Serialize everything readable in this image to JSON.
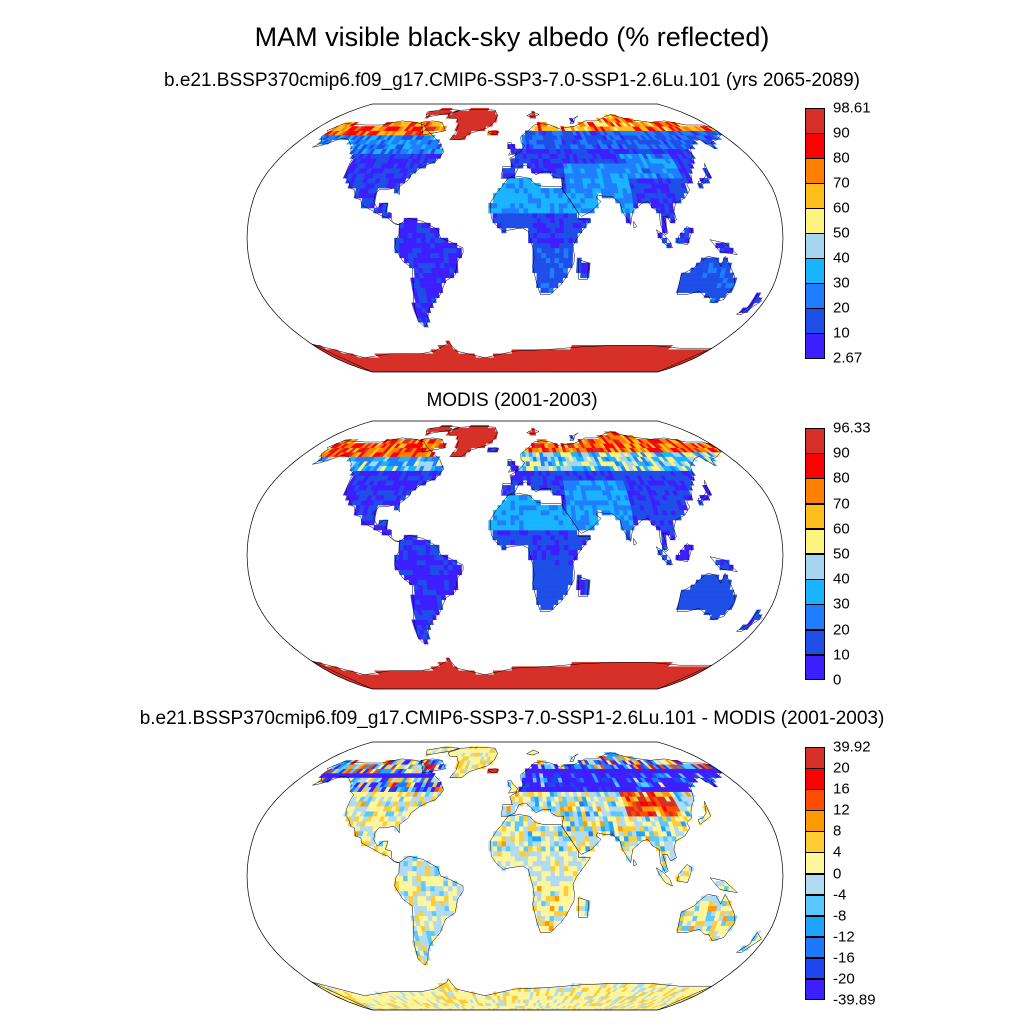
{
  "title": "MAM visible black-sky albedo (% reflected)",
  "panels": [
    {
      "subtitle": "b.e21.BSSP370cmip6.f09_g17.CMIP6-SSP3-7.0-SSP1-2.6Lu.101 (yrs 2065-2089)",
      "colorbar": {
        "labels": [
          "98.61",
          "90",
          "80",
          "70",
          "60",
          "50",
          "40",
          "30",
          "20",
          "10",
          "2.67"
        ],
        "colors": [
          "#d62f27",
          "#ff0000",
          "#ff7f00",
          "#ffbf1a",
          "#fff37f",
          "#a6d6ef",
          "#19b4ff",
          "#1e7eff",
          "#1e4ee8",
          "#3c1eff"
        ]
      }
    },
    {
      "subtitle": "MODIS (2001-2003)",
      "colorbar": {
        "labels": [
          "96.33",
          "90",
          "80",
          "70",
          "60",
          "50",
          "40",
          "30",
          "20",
          "10",
          "0"
        ],
        "colors": [
          "#d62f27",
          "#ff0000",
          "#ff7f00",
          "#ffbf1a",
          "#fff37f",
          "#a6d6ef",
          "#19b4ff",
          "#1e7eff",
          "#1e4ee8",
          "#3c1eff"
        ]
      }
    },
    {
      "subtitle": "b.e21.BSSP370cmip6.f09_g17.CMIP6-SSP3-7.0-SSP1-2.6Lu.101 - MODIS (2001-2003)",
      "colorbar": {
        "labels": [
          "39.92",
          "20",
          "16",
          "12",
          "8",
          "4",
          "0",
          "-4",
          "-8",
          "-12",
          "-16",
          "-20",
          "-39.89"
        ],
        "colors": [
          "#d62f27",
          "#ff0000",
          "#ff4d00",
          "#ff9900",
          "#ffcc33",
          "#fff59a",
          "#b0dbf0",
          "#5ac8ff",
          "#1ea4ff",
          "#1e78ff",
          "#1e46ee",
          "#3c1eff"
        ]
      }
    }
  ]
}
